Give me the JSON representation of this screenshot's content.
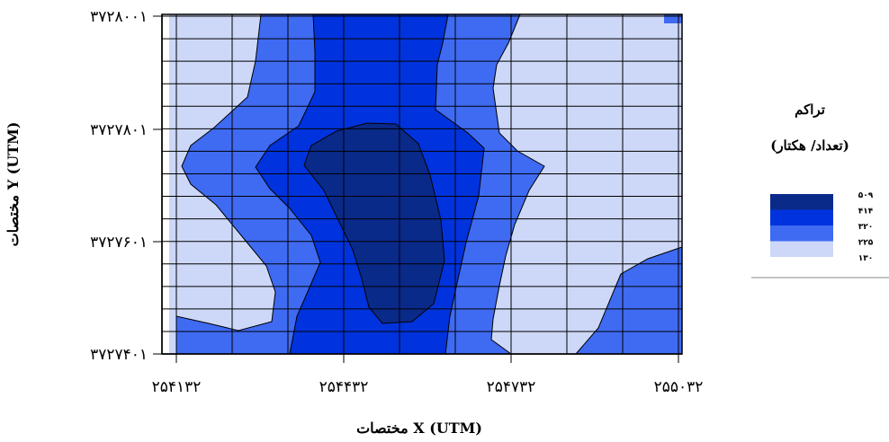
{
  "chart_data": {
    "type": "contour",
    "title": "",
    "xlabel": "مختصات X (UTM)",
    "ylabel": "مختصات Y (UTM)",
    "x_ticks": [
      "۲۵۴۱۳۲",
      "۲۵۴۴۳۲",
      "۲۵۴۷۳۲",
      "۲۵۵۰۳۲"
    ],
    "y_ticks": [
      "۳۷۲۸۰۰۱",
      "۳۷۲۷۸۰۱",
      "۳۷۲۷۶۰۱",
      "۳۷۲۷۴۰۱"
    ],
    "x_tick_values": [
      254132,
      254432,
      254732,
      255032
    ],
    "y_tick_values": [
      3728001,
      3727801,
      3727601,
      3727401
    ],
    "xlim": [
      254132,
      255032
    ],
    "ylim": [
      3727401,
      3728001
    ],
    "grid": true,
    "legend": {
      "title_line1": "تراکم",
      "title_line2": "(تعداد/ هکتار)",
      "position": "right",
      "levels": [
        {
          "label": "۵۰۹",
          "value": 509,
          "color": "#0a2a8a"
        },
        {
          "label": "۴۱۴",
          "value": 414,
          "color": "#0033dd"
        },
        {
          "label": "۳۲۰",
          "value": 320,
          "color": "#3f6af2"
        },
        {
          "label": "۲۲۵",
          "value": 225,
          "color": "#cdd8f8"
        },
        {
          "label": "۱۳۰",
          "value": 130,
          "color": "#ffffff"
        }
      ]
    },
    "units": "تعداد/ هکتار"
  }
}
